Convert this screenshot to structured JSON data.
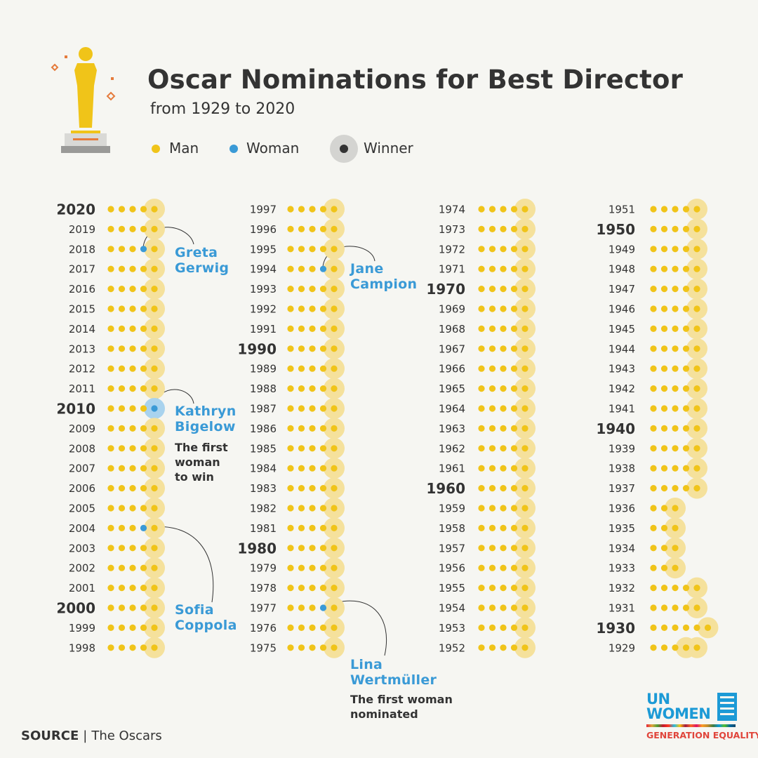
{
  "title": "Oscar Nominations for Best Director",
  "subtitle": "from 1929 to 2020",
  "legend": {
    "man": "Man",
    "woman": "Woman",
    "winner": "Winner"
  },
  "colors": {
    "man": "#f0c419",
    "woman": "#3a9ad6",
    "winner_halo": "#f5e19c",
    "woman_winner_halo": "#a9d3ee",
    "text": "#333333",
    "accent_blue": "#3a9ad6"
  },
  "source": {
    "label": "SOURCE",
    "separator": "|",
    "value": "The Oscars"
  },
  "annotations": {
    "greta": {
      "name": "Greta\nGerwig"
    },
    "kathryn": {
      "name": "Kathryn\nBigelow",
      "note": "The first\nwoman\nto win"
    },
    "sofia": {
      "name": "Sofia\nCoppola"
    },
    "jane": {
      "name": "Jane\nCampion"
    },
    "lina": {
      "name": "Lina\nWertmüller",
      "note": "The first woman\nnominated"
    }
  },
  "logo": {
    "un_women": "UN\nWOMEN",
    "generation_equality": "GENERATION EQUALITY"
  },
  "chart_data": {
    "type": "dot-matrix",
    "title": "Oscar Nominations for Best Director",
    "subtitle": "from 1929 to 2020",
    "emphasized_years": [
      2020,
      2010,
      2000,
      1990,
      1980,
      1970,
      1960,
      1950,
      1940,
      1930
    ],
    "years": [
      {
        "year": 2020,
        "nominees": 5,
        "women": [],
        "winner_index": 4
      },
      {
        "year": 2019,
        "nominees": 5,
        "women": [],
        "winner_index": 4
      },
      {
        "year": 2018,
        "nominees": 5,
        "women": [
          3
        ],
        "winner_index": 4
      },
      {
        "year": 2017,
        "nominees": 5,
        "women": [],
        "winner_index": 4
      },
      {
        "year": 2016,
        "nominees": 5,
        "women": [],
        "winner_index": 4
      },
      {
        "year": 2015,
        "nominees": 5,
        "women": [],
        "winner_index": 4
      },
      {
        "year": 2014,
        "nominees": 5,
        "women": [],
        "winner_index": 4
      },
      {
        "year": 2013,
        "nominees": 5,
        "women": [],
        "winner_index": 4
      },
      {
        "year": 2012,
        "nominees": 5,
        "women": [],
        "winner_index": 4
      },
      {
        "year": 2011,
        "nominees": 5,
        "women": [],
        "winner_index": 4
      },
      {
        "year": 2010,
        "nominees": 5,
        "women": [
          4
        ],
        "winner_index": 4
      },
      {
        "year": 2009,
        "nominees": 5,
        "women": [],
        "winner_index": 4
      },
      {
        "year": 2008,
        "nominees": 5,
        "women": [],
        "winner_index": 4
      },
      {
        "year": 2007,
        "nominees": 5,
        "women": [],
        "winner_index": 4
      },
      {
        "year": 2006,
        "nominees": 5,
        "women": [],
        "winner_index": 4
      },
      {
        "year": 2005,
        "nominees": 5,
        "women": [],
        "winner_index": 4
      },
      {
        "year": 2004,
        "nominees": 5,
        "women": [
          3
        ],
        "winner_index": 4
      },
      {
        "year": 2003,
        "nominees": 5,
        "women": [],
        "winner_index": 4
      },
      {
        "year": 2002,
        "nominees": 5,
        "women": [],
        "winner_index": 4
      },
      {
        "year": 2001,
        "nominees": 5,
        "women": [],
        "winner_index": 4
      },
      {
        "year": 2000,
        "nominees": 5,
        "women": [],
        "winner_index": 4
      },
      {
        "year": 1999,
        "nominees": 5,
        "women": [],
        "winner_index": 4
      },
      {
        "year": 1998,
        "nominees": 5,
        "women": [],
        "winner_index": 4
      },
      {
        "year": 1997,
        "nominees": 5,
        "women": [],
        "winner_index": 4
      },
      {
        "year": 1996,
        "nominees": 5,
        "women": [],
        "winner_index": 4
      },
      {
        "year": 1995,
        "nominees": 5,
        "women": [],
        "winner_index": 4
      },
      {
        "year": 1994,
        "nominees": 5,
        "women": [
          3
        ],
        "winner_index": 4
      },
      {
        "year": 1993,
        "nominees": 5,
        "women": [],
        "winner_index": 4
      },
      {
        "year": 1992,
        "nominees": 5,
        "women": [],
        "winner_index": 4
      },
      {
        "year": 1991,
        "nominees": 5,
        "women": [],
        "winner_index": 4
      },
      {
        "year": 1990,
        "nominees": 5,
        "women": [],
        "winner_index": 4
      },
      {
        "year": 1989,
        "nominees": 5,
        "women": [],
        "winner_index": 4
      },
      {
        "year": 1988,
        "nominees": 5,
        "women": [],
        "winner_index": 4
      },
      {
        "year": 1987,
        "nominees": 5,
        "women": [],
        "winner_index": 4
      },
      {
        "year": 1986,
        "nominees": 5,
        "women": [],
        "winner_index": 4
      },
      {
        "year": 1985,
        "nominees": 5,
        "women": [],
        "winner_index": 4
      },
      {
        "year": 1984,
        "nominees": 5,
        "women": [],
        "winner_index": 4
      },
      {
        "year": 1983,
        "nominees": 5,
        "women": [],
        "winner_index": 4
      },
      {
        "year": 1982,
        "nominees": 5,
        "women": [],
        "winner_index": 4
      },
      {
        "year": 1981,
        "nominees": 5,
        "women": [],
        "winner_index": 4
      },
      {
        "year": 1980,
        "nominees": 5,
        "women": [],
        "winner_index": 4
      },
      {
        "year": 1979,
        "nominees": 5,
        "women": [],
        "winner_index": 4
      },
      {
        "year": 1978,
        "nominees": 5,
        "women": [],
        "winner_index": 4
      },
      {
        "year": 1977,
        "nominees": 5,
        "women": [
          3
        ],
        "winner_index": 4
      },
      {
        "year": 1976,
        "nominees": 5,
        "women": [],
        "winner_index": 4
      },
      {
        "year": 1975,
        "nominees": 5,
        "women": [],
        "winner_index": 4
      },
      {
        "year": 1974,
        "nominees": 5,
        "women": [],
        "winner_index": 4
      },
      {
        "year": 1973,
        "nominees": 5,
        "women": [],
        "winner_index": 4
      },
      {
        "year": 1972,
        "nominees": 5,
        "women": [],
        "winner_index": 4
      },
      {
        "year": 1971,
        "nominees": 5,
        "women": [],
        "winner_index": 4
      },
      {
        "year": 1970,
        "nominees": 5,
        "women": [],
        "winner_index": 4
      },
      {
        "year": 1969,
        "nominees": 5,
        "women": [],
        "winner_index": 4
      },
      {
        "year": 1968,
        "nominees": 5,
        "women": [],
        "winner_index": 4
      },
      {
        "year": 1967,
        "nominees": 5,
        "women": [],
        "winner_index": 4
      },
      {
        "year": 1966,
        "nominees": 5,
        "women": [],
        "winner_index": 4
      },
      {
        "year": 1965,
        "nominees": 5,
        "women": [],
        "winner_index": 4
      },
      {
        "year": 1964,
        "nominees": 5,
        "women": [],
        "winner_index": 4
      },
      {
        "year": 1963,
        "nominees": 5,
        "women": [],
        "winner_index": 4
      },
      {
        "year": 1962,
        "nominees": 5,
        "women": [],
        "winner_index": 4
      },
      {
        "year": 1961,
        "nominees": 5,
        "women": [],
        "winner_index": 4
      },
      {
        "year": 1960,
        "nominees": 5,
        "women": [],
        "winner_index": 4
      },
      {
        "year": 1959,
        "nominees": 5,
        "women": [],
        "winner_index": 4
      },
      {
        "year": 1958,
        "nominees": 5,
        "women": [],
        "winner_index": 4
      },
      {
        "year": 1957,
        "nominees": 5,
        "women": [],
        "winner_index": 4
      },
      {
        "year": 1956,
        "nominees": 5,
        "women": [],
        "winner_index": 4
      },
      {
        "year": 1955,
        "nominees": 5,
        "women": [],
        "winner_index": 4
      },
      {
        "year": 1954,
        "nominees": 5,
        "women": [],
        "winner_index": 4
      },
      {
        "year": 1953,
        "nominees": 5,
        "women": [],
        "winner_index": 4
      },
      {
        "year": 1952,
        "nominees": 5,
        "women": [],
        "winner_index": 4
      },
      {
        "year": 1951,
        "nominees": 5,
        "women": [],
        "winner_index": 4
      },
      {
        "year": 1950,
        "nominees": 5,
        "women": [],
        "winner_index": 4
      },
      {
        "year": 1949,
        "nominees": 5,
        "women": [],
        "winner_index": 4
      },
      {
        "year": 1948,
        "nominees": 5,
        "women": [],
        "winner_index": 4
      },
      {
        "year": 1947,
        "nominees": 5,
        "women": [],
        "winner_index": 4
      },
      {
        "year": 1946,
        "nominees": 5,
        "women": [],
        "winner_index": 4
      },
      {
        "year": 1945,
        "nominees": 5,
        "women": [],
        "winner_index": 4
      },
      {
        "year": 1944,
        "nominees": 5,
        "women": [],
        "winner_index": 4
      },
      {
        "year": 1943,
        "nominees": 5,
        "women": [],
        "winner_index": 4
      },
      {
        "year": 1942,
        "nominees": 5,
        "women": [],
        "winner_index": 4
      },
      {
        "year": 1941,
        "nominees": 5,
        "women": [],
        "winner_index": 4
      },
      {
        "year": 1940,
        "nominees": 5,
        "women": [],
        "winner_index": 4
      },
      {
        "year": 1939,
        "nominees": 5,
        "women": [],
        "winner_index": 4
      },
      {
        "year": 1938,
        "nominees": 5,
        "women": [],
        "winner_index": 4
      },
      {
        "year": 1937,
        "nominees": 5,
        "women": [],
        "winner_index": 4
      },
      {
        "year": 1936,
        "nominees": 3,
        "women": [],
        "winner_index": 2
      },
      {
        "year": 1935,
        "nominees": 3,
        "women": [],
        "winner_index": 2
      },
      {
        "year": 1934,
        "nominees": 3,
        "women": [],
        "winner_index": 2
      },
      {
        "year": 1933,
        "nominees": 3,
        "women": [],
        "winner_index": 2
      },
      {
        "year": 1932,
        "nominees": 5,
        "women": [],
        "winner_index": 4
      },
      {
        "year": 1931,
        "nominees": 5,
        "women": [],
        "winner_index": 4
      },
      {
        "year": 1930,
        "nominees": 6,
        "women": [],
        "winner_index": 5
      },
      {
        "year": 1929,
        "nominees": 5,
        "women": [],
        "winner_indices": [
          3,
          4
        ]
      }
    ]
  }
}
